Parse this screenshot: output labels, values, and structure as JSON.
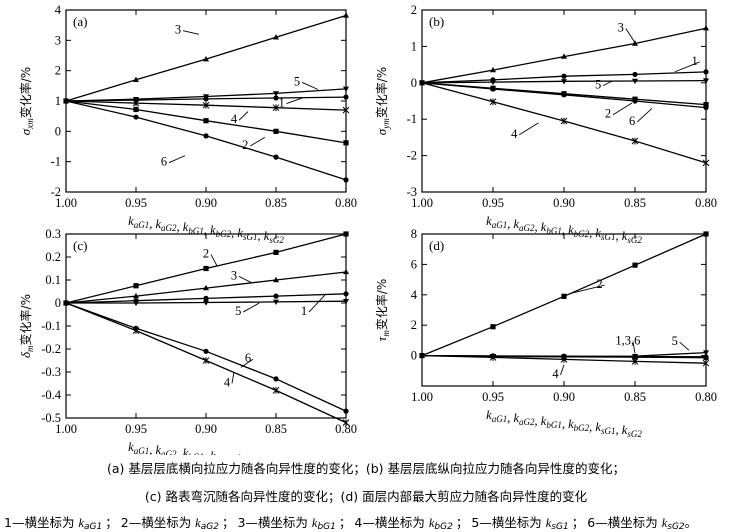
{
  "chart_data": [
    {
      "id": "a",
      "type": "line",
      "panel_label": "(a)",
      "ylabel_main": "σ",
      "ylabel_sub": "xm",
      "ylabel_rest": "变化率/%",
      "xlabel": "kaG1, kaG2, kbG1, kbG2, ksG1, ksG2",
      "xlim": [
        1.0,
        0.8
      ],
      "ylim": [
        -2,
        4
      ],
      "xticks": [
        "1.00",
        "0.95",
        "0.90",
        "0.85",
        "0.80"
      ],
      "yticks": [
        "-2",
        "-1",
        "0",
        "1",
        "2",
        "3",
        "4"
      ],
      "x": [
        1.0,
        0.95,
        0.9,
        0.85,
        0.8
      ],
      "series": [
        {
          "name": "1",
          "values": [
            1.0,
            1.03,
            1.07,
            1.1,
            1.13
          ],
          "marker": "dot"
        },
        {
          "name": "2",
          "values": [
            1.0,
            0.72,
            0.35,
            0.0,
            -0.38
          ],
          "marker": "square"
        },
        {
          "name": "3",
          "values": [
            1.0,
            1.7,
            2.38,
            3.1,
            3.82
          ],
          "marker": "triangle"
        },
        {
          "name": "4",
          "values": [
            1.0,
            0.93,
            0.86,
            0.78,
            0.7
          ],
          "marker": "star"
        },
        {
          "name": "5",
          "values": [
            1.0,
            1.06,
            1.15,
            1.25,
            1.4
          ],
          "marker": "triangle-down"
        },
        {
          "name": "6",
          "values": [
            1.0,
            0.47,
            -0.15,
            -0.85,
            -1.6
          ],
          "marker": "dot"
        }
      ],
      "labels": [
        {
          "text": "3",
          "lx": 0.92,
          "ly": 3.35,
          "ax": 0.905,
          "ay": 3.2
        },
        {
          "text": "5",
          "lx": 0.835,
          "ly": 1.65,
          "ax": 0.82,
          "ay": 1.38
        },
        {
          "text": "1",
          "lx": 0.846,
          "ly": 0.95,
          "ax": 0.83,
          "ay": 1.12
        },
        {
          "text": "4",
          "lx": 0.88,
          "ly": 0.4,
          "ax": 0.87,
          "ay": 0.65
        },
        {
          "text": "2",
          "lx": 0.872,
          "ly": -0.45,
          "ax": 0.858,
          "ay": -0.2
        },
        {
          "text": "6",
          "lx": 0.93,
          "ly": -1.0,
          "ax": 0.915,
          "ay": -0.8
        }
      ]
    },
    {
      "id": "b",
      "type": "line",
      "panel_label": "(b)",
      "ylabel_main": "σ",
      "ylabel_sub": "ym",
      "ylabel_rest": "变化率/%",
      "xlabel": "kaG1, kaG2, kbG1, kbG2, ksG1, ksG2",
      "xlim": [
        1.0,
        0.8
      ],
      "ylim": [
        -3,
        2
      ],
      "xticks": [
        "1.00",
        "0.95",
        "0.90",
        "0.85",
        "0.80"
      ],
      "yticks": [
        "-3",
        "-2",
        "-1",
        "0",
        "1",
        "2"
      ],
      "x": [
        1.0,
        0.95,
        0.9,
        0.85,
        0.8
      ],
      "series": [
        {
          "name": "1",
          "values": [
            0.0,
            0.08,
            0.18,
            0.23,
            0.3
          ],
          "marker": "dot"
        },
        {
          "name": "2",
          "values": [
            0.0,
            -0.15,
            -0.3,
            -0.45,
            -0.6
          ],
          "marker": "square"
        },
        {
          "name": "3",
          "values": [
            0.0,
            0.35,
            0.72,
            1.08,
            1.5
          ],
          "marker": "triangle"
        },
        {
          "name": "4",
          "values": [
            0.0,
            -0.52,
            -1.05,
            -1.6,
            -2.2
          ],
          "marker": "star"
        },
        {
          "name": "5",
          "values": [
            0.0,
            0.02,
            0.04,
            0.05,
            0.06
          ],
          "marker": "triangle-down"
        },
        {
          "name": "6",
          "values": [
            0.0,
            -0.17,
            -0.33,
            -0.5,
            -0.68
          ],
          "marker": "dot"
        }
      ],
      "labels": [
        {
          "text": "3",
          "lx": 0.86,
          "ly": 1.52,
          "ax": 0.85,
          "ay": 1.1
        },
        {
          "text": "1",
          "lx": 0.808,
          "ly": 0.6,
          "ax": 0.822,
          "ay": 0.3
        },
        {
          "text": "5",
          "lx": 0.876,
          "ly": -0.05,
          "ax": 0.866,
          "ay": 0.05
        },
        {
          "text": "2",
          "lx": 0.869,
          "ly": -0.85,
          "ax": 0.852,
          "ay": -0.55
        },
        {
          "text": "6",
          "lx": 0.852,
          "ly": -1.05,
          "ax": 0.838,
          "ay": -0.7
        },
        {
          "text": "4",
          "lx": 0.935,
          "ly": -1.4,
          "ax": 0.918,
          "ay": -1.1
        }
      ]
    },
    {
      "id": "c",
      "type": "line",
      "panel_label": "(c)",
      "ylabel_main": "δ",
      "ylabel_sub": "m",
      "ylabel_rest": "变化率/%",
      "xlabel": "kaG1, kaG2, kbG1, kbG2, ksG1, ksG2",
      "xlim": [
        1.0,
        0.8
      ],
      "ylim": [
        -0.5,
        0.3
      ],
      "xticks": [
        "1.00",
        "0.95",
        "0.90",
        "0.85",
        "0.80"
      ],
      "yticks": [
        "-0.5",
        "-0.4",
        "-0.3",
        "-0.2",
        "-0.1",
        "0",
        "0.1",
        "0.2",
        "0.3"
      ],
      "x": [
        1.0,
        0.95,
        0.9,
        0.85,
        0.8
      ],
      "series": [
        {
          "name": "1",
          "values": [
            0.0,
            0.01,
            0.02,
            0.03,
            0.04
          ],
          "marker": "dot"
        },
        {
          "name": "2",
          "values": [
            0.0,
            0.075,
            0.15,
            0.22,
            0.3
          ],
          "marker": "square"
        },
        {
          "name": "3",
          "values": [
            0.0,
            0.03,
            0.065,
            0.1,
            0.135
          ],
          "marker": "triangle"
        },
        {
          "name": "4",
          "values": [
            0.0,
            -0.12,
            -0.25,
            -0.38,
            -0.52
          ],
          "marker": "star"
        },
        {
          "name": "5",
          "values": [
            0.0,
            0.0,
            0.002,
            0.005,
            0.008
          ],
          "marker": "triangle-down"
        },
        {
          "name": "6",
          "values": [
            0.0,
            -0.11,
            -0.21,
            -0.33,
            -0.47
          ],
          "marker": "dot"
        }
      ],
      "labels": [
        {
          "text": "2",
          "lx": 0.9,
          "ly": 0.215,
          "ax": 0.892,
          "ay": 0.16
        },
        {
          "text": "3",
          "lx": 0.88,
          "ly": 0.12,
          "ax": 0.868,
          "ay": 0.09
        },
        {
          "text": "5",
          "lx": 0.877,
          "ly": -0.035,
          "ax": 0.862,
          "ay": 0.0
        },
        {
          "text": "1",
          "lx": 0.83,
          "ly": -0.035,
          "ax": 0.815,
          "ay": 0.035
        },
        {
          "text": "6",
          "lx": 0.87,
          "ly": -0.24,
          "ax": 0.875,
          "ay": -0.28
        },
        {
          "text": "4",
          "lx": 0.885,
          "ly": -0.345,
          "ax": 0.88,
          "ay": -0.3
        }
      ]
    },
    {
      "id": "d",
      "type": "line",
      "panel_label": "(d)",
      "ylabel_main": "τ",
      "ylabel_sub": "m",
      "ylabel_rest": "变化率/%",
      "xlabel": "kaG1, kaG2, kbG1, kbG2, ksG1, ksG2",
      "xlim": [
        1.0,
        0.8
      ],
      "ylim": [
        -2,
        8
      ],
      "xticks": [
        "1.00",
        "0.95",
        "0.90",
        "0.85",
        "0.80"
      ],
      "yticks": [
        "0",
        "2",
        "4",
        "6",
        "8"
      ],
      "x": [
        1.0,
        0.95,
        0.9,
        0.85,
        0.8
      ],
      "series": [
        {
          "name": "1",
          "values": [
            0.0,
            -0.02,
            -0.04,
            -0.06,
            -0.08
          ],
          "marker": "dot"
        },
        {
          "name": "2",
          "values": [
            0.0,
            1.9,
            3.9,
            5.95,
            8.0
          ],
          "marker": "square"
        },
        {
          "name": "3",
          "values": [
            0.0,
            -0.03,
            -0.06,
            -0.09,
            -0.12
          ],
          "marker": "triangle"
        },
        {
          "name": "4",
          "values": [
            0.0,
            -0.12,
            -0.25,
            -0.38,
            -0.5
          ],
          "marker": "star"
        },
        {
          "name": "5",
          "values": [
            0.0,
            -0.05,
            -0.07,
            -0.04,
            0.2
          ],
          "marker": "triangle-down"
        },
        {
          "name": "6",
          "values": [
            0.0,
            -0.04,
            -0.08,
            -0.1,
            -0.14
          ],
          "marker": "dot"
        }
      ],
      "labels": [
        {
          "text": "2",
          "lx": 0.875,
          "ly": 4.7,
          "ax": 0.895,
          "ay": 4.1
        },
        {
          "text": "1,3,6",
          "lx": 0.855,
          "ly": 1.0,
          "ax": 0.85,
          "ay": 0.15
        },
        {
          "text": "5",
          "lx": 0.822,
          "ly": 0.95,
          "ax": 0.812,
          "ay": 0.35
        },
        {
          "text": "4",
          "lx": 0.906,
          "ly": -1.2,
          "ax": 0.9,
          "ay": -0.6
        }
      ]
    }
  ],
  "captions": {
    "line1": "(a) 基层层底横向拉应力随各向异性度的变化；(b) 基层层底纵向拉应力随各向异性度的变化；",
    "line2": "(c) 路表弯沉随各向异性度的变化；(d) 面层内部最大剪应力随各向异性度的变化"
  },
  "legend": {
    "prefix_sep": "—横坐标为 ",
    "items": [
      {
        "num": "1",
        "k": "k",
        "sub": "aG1"
      },
      {
        "num": "2",
        "k": "k",
        "sub": "aG2"
      },
      {
        "num": "3",
        "k": "k",
        "sub": "bG1"
      },
      {
        "num": "4",
        "k": "k",
        "sub": "bG2"
      },
      {
        "num": "5",
        "k": "k",
        "sub": "sG1"
      },
      {
        "num": "6",
        "k": "k",
        "sub": "sG2"
      }
    ]
  }
}
